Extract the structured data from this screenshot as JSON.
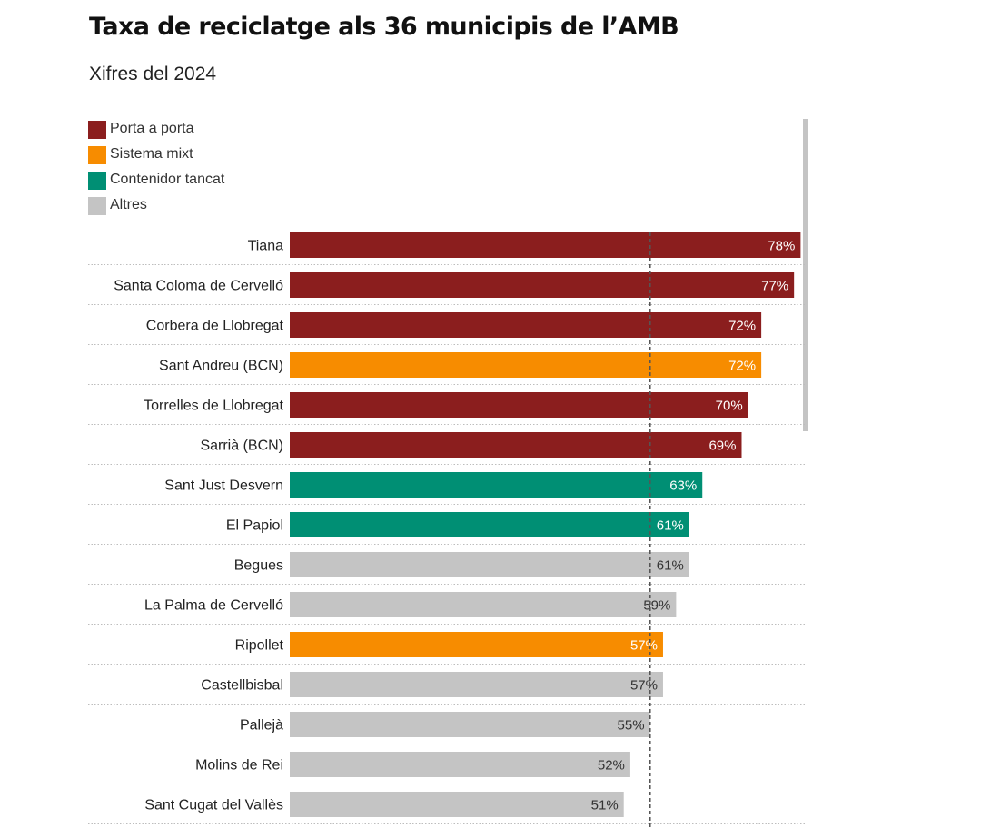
{
  "header": {
    "title": "Taxa de reciclatge als 36 municipis de l’AMB",
    "subtitle": "Xifres del 2024"
  },
  "legend": [
    {
      "label": "Porta a porta",
      "color": "#8b1e1e"
    },
    {
      "label": "Sistema mixt",
      "color": "#f78c00"
    },
    {
      "label": "Contenidor tancat",
      "color": "#008f74"
    },
    {
      "label": "Altres",
      "color": "#c4c4c4"
    }
  ],
  "chart_data": {
    "type": "bar",
    "orientation": "horizontal",
    "title": "Taxa de reciclatge als 36 municipis de l’AMB",
    "subtitle": "Xifres del 2024",
    "categories": [
      "Tiana",
      "Santa Coloma de Cervelló",
      "Corbera de Llobregat",
      "Sant Andreu (BCN)",
      "Torrelles de Llobregat",
      "Sarrià (BCN)",
      "Sant Just Desvern",
      "El Papiol",
      "Begues",
      "La Palma de Cervelló",
      "Ripollet",
      "Castellbisbal",
      "Pallejà",
      "Molins de Rei",
      "Sant Cugat del Vallès"
    ],
    "values": [
      78,
      77,
      72,
      72,
      70,
      69,
      63,
      61,
      61,
      59,
      57,
      57,
      55,
      52,
      51
    ],
    "value_labels": [
      "78%",
      "77%",
      "72%",
      "72%",
      "70%",
      "69%",
      "63%",
      "61%",
      "61%",
      "59%",
      "57%",
      "57%",
      "55%",
      "52%",
      "51%"
    ],
    "groups": [
      "Porta a porta",
      "Porta a porta",
      "Porta a porta",
      "Sistema mixt",
      "Porta a porta",
      "Porta a porta",
      "Contenidor tancat",
      "Contenidor tancat",
      "Altres",
      "Altres",
      "Sistema mixt",
      "Altres",
      "Altres",
      "Altres",
      "Altres"
    ],
    "group_colors": {
      "Porta a porta": "#8b1e1e",
      "Sistema mixt": "#f78c00",
      "Contenidor tancat": "#008f74",
      "Altres": "#c4c4c4"
    },
    "reference_line": 55,
    "xlim": [
      0,
      78
    ],
    "legend_position": "top-left",
    "grid": false
  }
}
